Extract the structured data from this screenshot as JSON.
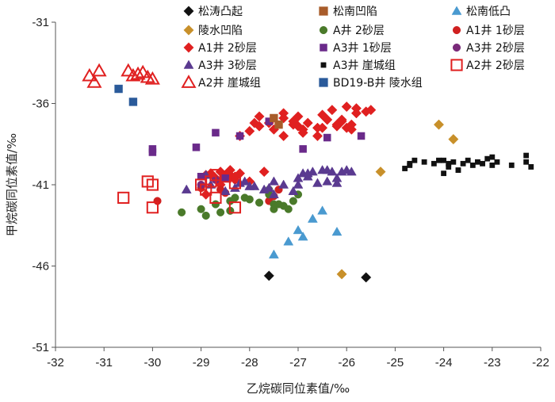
{
  "chart_data": {
    "type": "scatter",
    "title": "",
    "xlabel": "乙烷碳同位素值/‰",
    "ylabel": "甲烷碳同位素值/‰",
    "xlim": [
      -32,
      -22
    ],
    "ylim": [
      -51,
      -31
    ],
    "x_ticks": [
      -32,
      -31,
      -30,
      -29,
      -28,
      -27,
      -26,
      -25,
      -24,
      -23,
      -22
    ],
    "y_ticks": [
      -31,
      -36,
      -41,
      -46,
      -51
    ],
    "grid": false,
    "legend_position": "top-right",
    "series": [
      {
        "name": "松涛凸起",
        "marker": "diamond",
        "color": "#111111",
        "filled": true,
        "points": [
          [
            -27.6,
            -46.6
          ],
          [
            -25.6,
            -46.7
          ]
        ]
      },
      {
        "name": "陵水凹陷",
        "marker": "diamond",
        "color": "#c8902a",
        "filled": true,
        "points": [
          [
            -26.1,
            -46.5
          ],
          [
            -25.3,
            -40.2
          ],
          [
            -24.1,
            -37.3
          ],
          [
            -23.8,
            -38.2
          ]
        ]
      },
      {
        "name": "A1井 2砂层",
        "marker": "diamond",
        "color": "#e02020",
        "filled": true,
        "points": [
          [
            -28.2,
            -38.0
          ],
          [
            -28.0,
            -37.7
          ],
          [
            -27.9,
            -37.2
          ],
          [
            -27.8,
            -36.8
          ],
          [
            -27.6,
            -37.2
          ],
          [
            -27.5,
            -37.6
          ],
          [
            -27.3,
            -38.0
          ],
          [
            -27.1,
            -37.3
          ],
          [
            -27.0,
            -36.8
          ],
          [
            -26.9,
            -37.6
          ],
          [
            -26.8,
            -37.2
          ],
          [
            -26.6,
            -38.0
          ],
          [
            -26.5,
            -36.7
          ],
          [
            -26.4,
            -37.0
          ],
          [
            -26.2,
            -37.3
          ],
          [
            -26.1,
            -37.0
          ],
          [
            -26.0,
            -37.5
          ],
          [
            -25.9,
            -37.6
          ],
          [
            -25.8,
            -36.6
          ],
          [
            -26.1,
            -37.1
          ],
          [
            -27.3,
            -36.6
          ],
          [
            -26.2,
            -37.4
          ],
          [
            -27.8,
            -37.4
          ],
          [
            -28.5,
            -40.4
          ],
          [
            -28.8,
            -40.3
          ],
          [
            -28.6,
            -41.0
          ],
          [
            -28.9,
            -41.6
          ],
          [
            -28.0,
            -40.8
          ],
          [
            -28.3,
            -40.7
          ],
          [
            -27.7,
            -40.2
          ],
          [
            -28.9,
            -40.4
          ],
          [
            -28.6,
            -40.2
          ],
          [
            -28.4,
            -40.1
          ],
          [
            -28.7,
            -40.6
          ],
          [
            -28.2,
            -40.3
          ],
          [
            -28.3,
            -40.5
          ],
          [
            -28.5,
            -40.5
          ],
          [
            -28.4,
            -40.4
          ],
          [
            -26.9,
            -37.8
          ],
          [
            -26.6,
            -37.5
          ],
          [
            -27.0,
            -37.4
          ],
          [
            -25.9,
            -37.3
          ],
          [
            -26.0,
            -36.2
          ],
          [
            -25.8,
            -36.3
          ],
          [
            -25.6,
            -36.5
          ],
          [
            -25.5,
            -36.4
          ],
          [
            -27.3,
            -36.9
          ],
          [
            -27.1,
            -37.1
          ],
          [
            -26.5,
            -37.5
          ],
          [
            -26.3,
            -36.4
          ]
        ]
      },
      {
        "name": "A1井 1砂层",
        "marker": "circle",
        "color": "#d02020",
        "filled": true,
        "points": [
          [
            -29.9,
            -42.0
          ],
          [
            -29.0,
            -41.2
          ],
          [
            -28.6,
            -41.3
          ],
          [
            -28.5,
            -41.5
          ],
          [
            -27.5,
            -41.7
          ],
          [
            -27.4,
            -41.3
          ],
          [
            -27.6,
            -42.0
          ]
        ]
      },
      {
        "name": "A井 2砂层",
        "marker": "circle",
        "color": "#4a7a2a",
        "filled": true,
        "points": [
          [
            -29.4,
            -42.7
          ],
          [
            -29.0,
            -42.5
          ],
          [
            -28.9,
            -42.9
          ],
          [
            -28.7,
            -42.2
          ],
          [
            -28.6,
            -42.7
          ],
          [
            -28.4,
            -42.0
          ],
          [
            -28.3,
            -41.8
          ],
          [
            -28.1,
            -41.8
          ],
          [
            -28.0,
            -41.9
          ],
          [
            -27.8,
            -42.1
          ],
          [
            -27.6,
            -41.6
          ],
          [
            -27.5,
            -42.2
          ],
          [
            -27.4,
            -42.2
          ],
          [
            -27.3,
            -42.3
          ],
          [
            -27.2,
            -42.5
          ],
          [
            -27.1,
            -42.0
          ],
          [
            -27.0,
            -41.6
          ],
          [
            -28.4,
            -42.6
          ],
          [
            -27.5,
            -42.5
          ],
          [
            -27.6,
            -41.3
          ]
        ]
      },
      {
        "name": "A3井 2砂层",
        "marker": "circle",
        "color": "#7a2a7a",
        "filled": true,
        "points": [
          [
            -29.0,
            -41.0
          ],
          [
            -28.7,
            -40.7
          ]
        ]
      },
      {
        "name": "A3井 3砂层",
        "marker": "triangle",
        "color": "#5a3a90",
        "filled": true,
        "points": [
          [
            -29.3,
            -41.3
          ],
          [
            -28.9,
            -40.4
          ],
          [
            -28.8,
            -41.0
          ],
          [
            -28.5,
            -41.4
          ],
          [
            -28.3,
            -41.2
          ],
          [
            -28.1,
            -40.8
          ],
          [
            -27.9,
            -41.1
          ],
          [
            -27.7,
            -41.3
          ],
          [
            -27.5,
            -41.6
          ],
          [
            -27.5,
            -40.8
          ],
          [
            -27.3,
            -41.0
          ],
          [
            -27.1,
            -41.4
          ],
          [
            -27.0,
            -40.6
          ],
          [
            -26.9,
            -40.3
          ],
          [
            -26.8,
            -40.5
          ],
          [
            -26.7,
            -40.2
          ],
          [
            -26.6,
            -40.9
          ],
          [
            -26.5,
            -40.1
          ],
          [
            -26.4,
            -40.8
          ],
          [
            -26.3,
            -40.2
          ],
          [
            -26.2,
            -40.6
          ],
          [
            -26.1,
            -40.2
          ],
          [
            -26.0,
            -40.1
          ],
          [
            -25.9,
            -40.2
          ],
          [
            -26.2,
            -40.9
          ],
          [
            -27.0,
            -41.0
          ],
          [
            -26.8,
            -40.3
          ],
          [
            -26.4,
            -40.1
          ],
          [
            -27.6,
            -41.2
          ],
          [
            -28.2,
            -40.9
          ],
          [
            -28.0,
            -41.1
          ]
        ]
      },
      {
        "name": "A3井 1砂层",
        "marker": "square",
        "color": "#6a2a8a",
        "filled": true,
        "points": [
          [
            -30.0,
            -38.8
          ],
          [
            -30.0,
            -39.0
          ],
          [
            -29.1,
            -38.7
          ],
          [
            -28.7,
            -37.8
          ],
          [
            -28.2,
            -38.0
          ],
          [
            -27.6,
            -37.1
          ],
          [
            -26.9,
            -38.8
          ],
          [
            -26.4,
            -38.1
          ],
          [
            -25.7,
            -38.0
          ],
          [
            -29.0,
            -40.5
          ],
          [
            -28.5,
            -40.6
          ]
        ]
      },
      {
        "name": "松南凹陷",
        "marker": "square",
        "color": "#a85c2a",
        "filled": true,
        "points": [
          [
            -27.5,
            -36.9
          ],
          [
            -27.4,
            -37.3
          ]
        ]
      },
      {
        "name": "A3井 崖城组",
        "marker": "square",
        "color": "#111111",
        "filled": true,
        "points": [
          [
            -24.8,
            -40.0
          ],
          [
            -24.7,
            -39.7
          ],
          [
            -24.6,
            -39.5
          ],
          [
            -24.4,
            -39.6
          ],
          [
            -24.2,
            -39.7
          ],
          [
            -24.1,
            -39.5
          ],
          [
            -24.0,
            -40.3
          ],
          [
            -23.9,
            -39.9
          ],
          [
            -23.8,
            -39.6
          ],
          [
            -23.7,
            -40.1
          ],
          [
            -23.6,
            -39.7
          ],
          [
            -23.5,
            -39.5
          ],
          [
            -23.4,
            -39.8
          ],
          [
            -23.3,
            -39.6
          ],
          [
            -23.2,
            -39.7
          ],
          [
            -23.1,
            -39.4
          ],
          [
            -23.0,
            -39.8
          ],
          [
            -22.9,
            -39.6
          ],
          [
            -22.6,
            -39.8
          ],
          [
            -22.3,
            -39.6
          ],
          [
            -22.2,
            -39.9
          ],
          [
            -23.0,
            -39.3
          ],
          [
            -23.9,
            -39.7
          ],
          [
            -24.0,
            -39.5
          ],
          [
            -24.7,
            -39.8
          ],
          [
            -22.3,
            -39.2
          ]
        ]
      },
      {
        "name": "A2井 2砂层",
        "marker": "square",
        "color": "#e02020",
        "filled": false,
        "points": [
          [
            -30.6,
            -41.8
          ],
          [
            -30.1,
            -40.8
          ],
          [
            -30.0,
            -41.0
          ],
          [
            -30.0,
            -42.4
          ],
          [
            -29.0,
            -41.0
          ],
          [
            -28.9,
            -41.3
          ],
          [
            -28.8,
            -40.8
          ],
          [
            -28.7,
            -40.4
          ],
          [
            -28.5,
            -40.5
          ],
          [
            -28.3,
            -40.9
          ],
          [
            -28.3,
            -42.4
          ],
          [
            -28.7,
            -41.8
          ]
        ]
      },
      {
        "name": "A2井 崖城组",
        "marker": "triangle",
        "color": "#e02020",
        "filled": false,
        "points": [
          [
            -31.3,
            -34.3
          ],
          [
            -31.1,
            -34.0
          ],
          [
            -31.2,
            -34.7
          ],
          [
            -30.5,
            -34.0
          ],
          [
            -30.4,
            -34.3
          ],
          [
            -30.2,
            -34.1
          ],
          [
            -30.1,
            -34.4
          ],
          [
            -30.0,
            -34.5
          ],
          [
            -30.3,
            -34.2
          ]
        ]
      },
      {
        "name": "BD19-B井 陵水组",
        "marker": "square",
        "color": "#2a5a9a",
        "filled": true,
        "points": [
          [
            -30.7,
            -35.1
          ],
          [
            -30.4,
            -35.9
          ]
        ]
      },
      {
        "name": "松南低凸",
        "marker": "triangle",
        "color": "#4a9ad0",
        "filled": true,
        "points": [
          [
            -27.5,
            -45.3
          ],
          [
            -27.2,
            -44.5
          ],
          [
            -27.0,
            -43.8
          ],
          [
            -26.9,
            -44.2
          ],
          [
            -26.7,
            -43.1
          ],
          [
            -26.5,
            -42.6
          ],
          [
            -26.2,
            -43.9
          ]
        ]
      }
    ],
    "legend_layout": [
      [
        "松涛凸起",
        "松南凹陷",
        "松南低凸"
      ],
      [
        "陵水凹陷",
        "A井 2砂层",
        "A1井 1砂层"
      ],
      [
        "A1井 2砂层",
        "A3井 1砂层",
        "A3井 2砂层"
      ],
      [
        "A3井 3砂层",
        "A3井 崖城组",
        "A2井 2砂层"
      ],
      [
        "A2井 崖城组",
        "BD19-B井 陵水组",
        ""
      ]
    ]
  }
}
